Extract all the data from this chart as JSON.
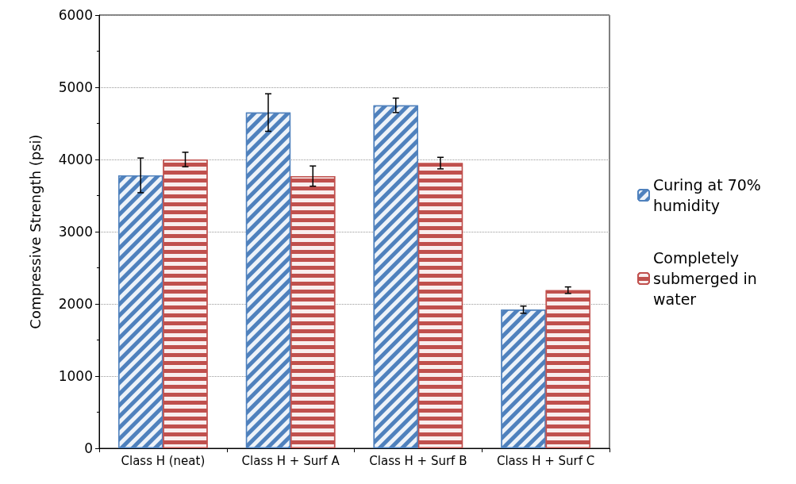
{
  "chart_data": {
    "type": "bar",
    "ylabel": "Compressive Strength (psi)",
    "categories": [
      "Class H (neat)",
      "Class H + Surf A",
      "Class H + Surf B",
      "Class H + Surf C"
    ],
    "series": [
      {
        "name": "Curing at 70% humidity",
        "color": "#4f81bd",
        "values": [
          3780,
          4650,
          4750,
          1920
        ],
        "errors": [
          240,
          260,
          100,
          50
        ]
      },
      {
        "name": "Completely submerged in water",
        "color": "#c0504d",
        "values": [
          4000,
          3770,
          3950,
          2190
        ],
        "errors": [
          100,
          140,
          80,
          45
        ]
      }
    ],
    "ylim": [
      0,
      6000
    ],
    "yticks": [
      0,
      1000,
      2000,
      3000,
      4000,
      5000,
      6000
    ],
    "grid": "y",
    "legend": "right"
  }
}
